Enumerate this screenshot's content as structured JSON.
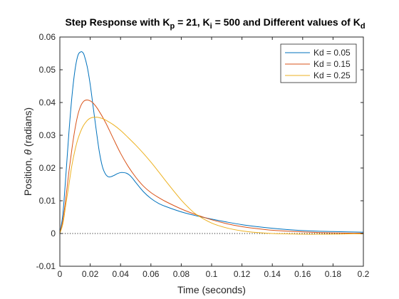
{
  "chart_data": {
    "type": "line",
    "title_parts": [
      {
        "text": "Step Response with K",
        "sub": false
      },
      {
        "text": "p",
        "sub": true
      },
      {
        "text": " = 21, K",
        "sub": false
      },
      {
        "text": "i",
        "sub": true
      },
      {
        "text": " = 500 and Different values of K",
        "sub": false
      },
      {
        "text": "d",
        "sub": true
      }
    ],
    "xlabel": "Time (seconds)",
    "ylabel_prefix": "Position, ",
    "ylabel_symbol": "θ",
    "ylabel_suffix": " (radians)",
    "xlim": [
      0,
      0.2
    ],
    "ylim": [
      -0.01,
      0.06
    ],
    "xticks": [
      0,
      0.02,
      0.04,
      0.06,
      0.08,
      0.1,
      0.12,
      0.14,
      0.16,
      0.18,
      0.2
    ],
    "xtick_labels": [
      "0",
      "0.02",
      "0.04",
      "0.06",
      "0.08",
      "0.1",
      "0.12",
      "0.14",
      "0.16",
      "0.18",
      "0.2"
    ],
    "yticks": [
      -0.01,
      0,
      0.01,
      0.02,
      0.03,
      0.04,
      0.05,
      0.06
    ],
    "ytick_labels": [
      "-0.01",
      "0",
      "0.01",
      "0.02",
      "0.03",
      "0.04",
      "0.05",
      "0.06"
    ],
    "grid": false,
    "legend_position": "top-right",
    "reference_line": {
      "y": 0,
      "style": "dotted",
      "color": "#000000"
    },
    "series": [
      {
        "name": "Kd = 0.05",
        "color": "#0072BD",
        "x": [
          0,
          0.002,
          0.004,
          0.006,
          0.008,
          0.01,
          0.012,
          0.014,
          0.015,
          0.016,
          0.018,
          0.02,
          0.022,
          0.024,
          0.026,
          0.028,
          0.03,
          0.032,
          0.034,
          0.036,
          0.038,
          0.04,
          0.042,
          0.044,
          0.046,
          0.048,
          0.05,
          0.055,
          0.06,
          0.065,
          0.07,
          0.08,
          0.09,
          0.1,
          0.11,
          0.12,
          0.13,
          0.14,
          0.15,
          0.16,
          0.17,
          0.18,
          0.19,
          0.2
        ],
        "y": [
          0,
          0.006,
          0.018,
          0.031,
          0.042,
          0.05,
          0.0545,
          0.0555,
          0.0553,
          0.0545,
          0.051,
          0.0455,
          0.0385,
          0.0315,
          0.025,
          0.0205,
          0.0182,
          0.0173,
          0.0174,
          0.0178,
          0.0183,
          0.0186,
          0.0186,
          0.0184,
          0.0178,
          0.0168,
          0.0156,
          0.0128,
          0.0107,
          0.0092,
          0.0082,
          0.0066,
          0.0054,
          0.0044,
          0.0035,
          0.0027,
          0.0021,
          0.0016,
          0.0012,
          0.0009,
          0.0007,
          0.0006,
          0.0005,
          0.0004
        ]
      },
      {
        "name": "Kd = 0.15",
        "color": "#D95319",
        "x": [
          0,
          0.002,
          0.004,
          0.006,
          0.008,
          0.01,
          0.012,
          0.014,
          0.016,
          0.018,
          0.02,
          0.022,
          0.025,
          0.03,
          0.035,
          0.04,
          0.045,
          0.05,
          0.055,
          0.06,
          0.065,
          0.07,
          0.08,
          0.09,
          0.1,
          0.11,
          0.12,
          0.13,
          0.14,
          0.15,
          0.16,
          0.17,
          0.18,
          0.19,
          0.2
        ],
        "y": [
          0,
          0.004,
          0.011,
          0.019,
          0.026,
          0.032,
          0.0365,
          0.0392,
          0.0405,
          0.0408,
          0.0405,
          0.0398,
          0.038,
          0.034,
          0.0292,
          0.0245,
          0.0205,
          0.0172,
          0.0145,
          0.0125,
          0.011,
          0.0097,
          0.0075,
          0.0057,
          0.0042,
          0.003,
          0.0021,
          0.0015,
          0.001,
          0.0007,
          0.0005,
          0.0003,
          0.0002,
          0.0001,
          0.0001
        ]
      },
      {
        "name": "Kd = 0.25",
        "color": "#EDB120",
        "x": [
          0,
          0.002,
          0.004,
          0.006,
          0.008,
          0.01,
          0.012,
          0.015,
          0.018,
          0.02,
          0.022,
          0.025,
          0.028,
          0.03,
          0.035,
          0.04,
          0.045,
          0.05,
          0.055,
          0.06,
          0.065,
          0.07,
          0.075,
          0.08,
          0.085,
          0.09,
          0.1,
          0.11,
          0.12,
          0.13,
          0.14,
          0.15,
          0.16,
          0.17,
          0.18,
          0.19,
          0.2
        ],
        "y": [
          0,
          0.003,
          0.009,
          0.015,
          0.021,
          0.0255,
          0.029,
          0.0325,
          0.0345,
          0.0352,
          0.0355,
          0.0355,
          0.0351,
          0.0347,
          0.0333,
          0.0315,
          0.0293,
          0.027,
          0.0245,
          0.0218,
          0.0189,
          0.0159,
          0.013,
          0.0102,
          0.0078,
          0.0058,
          0.0032,
          0.0017,
          0.0008,
          0.0003,
          0.0,
          -0.0001,
          -0.0002,
          -0.0002,
          -0.0002,
          -0.0001,
          -0.0001
        ]
      }
    ]
  }
}
